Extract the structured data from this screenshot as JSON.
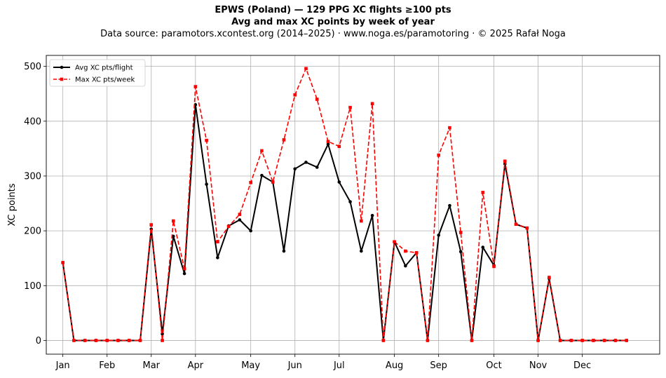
{
  "header": {
    "title": "EPWS (Poland)  —  129 PPG XC flights ≥100 pts",
    "subtitle": "Avg and max XC points by week of year",
    "source": "Data source: paramotors.xcontest.org (2014–2025)  ·  www.noga.es/paramotoring  ·  © 2025 Rafał Noga"
  },
  "chart_data": {
    "type": "line",
    "title": "EPWS (Poland)  —  129 PPG XC flights ≥100 pts",
    "subtitle": "Avg and max XC points by week of year",
    "xlabel": "",
    "ylabel": "XC points",
    "xlim": [
      -1.5,
      54
    ],
    "ylim": [
      -25,
      520
    ],
    "grid": true,
    "legend_position": "top-left",
    "x_ticks": [
      {
        "x": 0,
        "label": "Jan"
      },
      {
        "x": 4,
        "label": "Feb"
      },
      {
        "x": 8,
        "label": "Mar"
      },
      {
        "x": 12,
        "label": "Apr"
      },
      {
        "x": 17,
        "label": "May"
      },
      {
        "x": 21,
        "label": "Jun"
      },
      {
        "x": 25,
        "label": "Jul"
      },
      {
        "x": 30,
        "label": "Aug"
      },
      {
        "x": 34,
        "label": "Sep"
      },
      {
        "x": 39,
        "label": "Oct"
      },
      {
        "x": 43,
        "label": "Nov"
      },
      {
        "x": 47,
        "label": "Dec"
      }
    ],
    "y_ticks": [
      0,
      100,
      200,
      300,
      400,
      500
    ],
    "x": [
      0,
      1,
      2,
      3,
      4,
      5,
      6,
      7,
      8,
      9,
      10,
      11,
      12,
      13,
      14,
      15,
      16,
      17,
      18,
      19,
      20,
      21,
      22,
      23,
      24,
      25,
      26,
      27,
      28,
      29,
      30,
      31,
      32,
      33,
      34,
      35,
      36,
      37,
      38,
      39,
      40,
      41,
      42,
      43,
      44,
      45,
      46,
      47,
      48,
      49,
      50,
      51
    ],
    "series": [
      {
        "name": "Avg XC pts/flight",
        "color": "#000000",
        "style": "solid",
        "marker": "circle",
        "values": [
          142,
          0,
          0,
          0,
          0,
          0,
          0,
          0,
          203,
          12,
          190,
          122,
          430,
          285,
          151,
          209,
          220,
          200,
          301,
          289,
          163,
          313,
          325,
          316,
          358,
          289,
          253,
          163,
          228,
          0,
          180,
          136,
          160,
          0,
          192,
          246,
          162,
          0,
          170,
          137,
          322,
          212,
          205,
          0,
          113,
          0,
          0,
          0,
          0,
          0,
          0,
          0
        ]
      },
      {
        "name": "Max XC pts/week",
        "color": "#ff0000",
        "style": "dashed",
        "marker": "square",
        "values": [
          142,
          0,
          0,
          0,
          0,
          0,
          0,
          0,
          211,
          0,
          218,
          131,
          463,
          365,
          180,
          208,
          230,
          288,
          346,
          289,
          366,
          448,
          496,
          440,
          363,
          354,
          425,
          218,
          432,
          0,
          180,
          163,
          160,
          0,
          338,
          388,
          197,
          0,
          270,
          135,
          327,
          212,
          205,
          0,
          115,
          0,
          0,
          0,
          0,
          0,
          0,
          0
        ]
      }
    ]
  }
}
